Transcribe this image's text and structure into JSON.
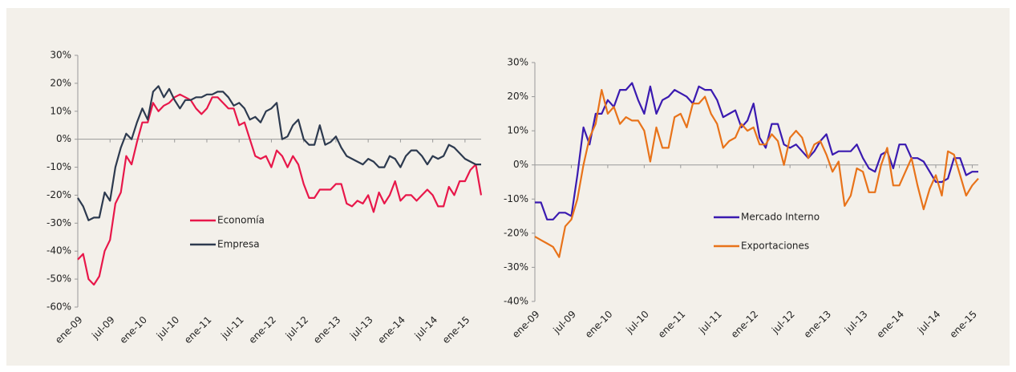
{
  "chart_data": [
    {
      "type": "line",
      "categories": [
        "ene-09",
        null,
        null,
        null,
        null,
        null,
        "jul-09",
        null,
        null,
        null,
        null,
        null,
        "ene-10",
        null,
        null,
        null,
        null,
        null,
        "jul-10",
        null,
        null,
        null,
        null,
        null,
        "ene-11",
        null,
        null,
        null,
        null,
        null,
        "jul-11",
        null,
        null,
        null,
        null,
        null,
        "ene-12",
        null,
        null,
        null,
        null,
        null,
        "jul-12",
        null,
        null,
        null,
        null,
        null,
        "ene-13",
        null,
        null,
        null,
        null,
        null,
        "jul-13",
        null,
        null,
        null,
        null,
        null,
        "ene-14",
        null,
        null,
        null,
        null,
        null,
        "jul-14",
        null,
        null,
        null,
        null,
        null,
        "ene-15",
        null,
        null,
        null
      ],
      "series": [
        {
          "name": "Economía",
          "color": "#e8174a",
          "values": [
            -43,
            -41,
            -50,
            -52,
            -49,
            -40,
            -36,
            -23,
            -19,
            -6,
            -9,
            -1,
            6,
            6,
            13,
            10,
            12,
            13,
            15,
            16,
            15,
            14,
            11,
            9,
            11,
            15,
            15,
            13,
            11,
            11,
            5,
            6,
            0,
            -6,
            -7,
            -6,
            -10,
            -4,
            -6,
            -10,
            -6,
            -9,
            -16,
            -21,
            -21,
            -18,
            -18,
            -18,
            -16,
            -16,
            -23,
            -24,
            -22,
            -23,
            -20,
            -26,
            -19,
            -23,
            -20,
            -15,
            -22,
            -20,
            -20,
            -22,
            -20,
            -18,
            -20,
            -24,
            -24,
            -17,
            -20,
            -15,
            -15,
            -11,
            -9,
            -20
          ]
        },
        {
          "name": "Empresa",
          "color": "#2d3a4f",
          "values": [
            -21,
            -24,
            -29,
            -28,
            -28,
            -19,
            -22,
            -10,
            -3,
            2,
            0,
            6,
            11,
            7,
            17,
            19,
            15,
            18,
            14,
            11,
            14,
            14,
            15,
            15,
            16,
            16,
            17,
            17,
            15,
            12,
            13,
            11,
            7,
            8,
            6,
            10,
            11,
            13,
            0,
            1,
            5,
            7,
            0,
            -2,
            -2,
            5,
            -2,
            -1,
            1,
            -3,
            -6,
            -7,
            -8,
            -9,
            -7,
            -8,
            -10,
            -10,
            -6,
            -7,
            -10,
            -6,
            -4,
            -4,
            -6,
            -9,
            -6,
            -7,
            -6,
            -2,
            -3,
            -5,
            -7,
            -8,
            -9,
            -9
          ]
        }
      ],
      "ylim": [
        -60,
        30
      ],
      "yticks": [
        {
          "value": -60,
          "label": "-60%"
        },
        {
          "value": -50,
          "label": "-50%"
        },
        {
          "value": -40,
          "label": "-40%"
        },
        {
          "value": -30,
          "label": "-30%"
        },
        {
          "value": -20,
          "label": "-20%"
        },
        {
          "value": -10,
          "label": "-10%"
        },
        {
          "value": 0,
          "label": "0%"
        },
        {
          "value": 10,
          "label": "10%"
        },
        {
          "value": 20,
          "label": "20%"
        },
        {
          "value": 30,
          "label": "30%"
        }
      ]
    },
    {
      "type": "line",
      "categories": [
        "ene-09",
        null,
        null,
        null,
        null,
        null,
        "jul-09",
        null,
        null,
        null,
        null,
        null,
        "ene-10",
        null,
        null,
        null,
        null,
        null,
        "jul-10",
        null,
        null,
        null,
        null,
        null,
        "ene-11",
        null,
        null,
        null,
        null,
        null,
        "jul-11",
        null,
        null,
        null,
        null,
        null,
        "ene-12",
        null,
        null,
        null,
        null,
        null,
        "jul-12",
        null,
        null,
        null,
        null,
        null,
        "ene-13",
        null,
        null,
        null,
        null,
        null,
        "jul-13",
        null,
        null,
        null,
        null,
        null,
        "ene-14",
        null,
        null,
        null,
        null,
        null,
        "jul-14",
        null,
        null,
        null,
        null,
        null,
        "ene-15",
        null
      ],
      "series": [
        {
          "name": "Mercado Interno",
          "color": "#3a1ab0",
          "values": [
            -11,
            -11,
            -16,
            -16,
            -14,
            -14,
            -15,
            -3,
            11,
            6,
            15,
            15,
            19,
            17,
            22,
            22,
            24,
            19,
            15,
            23,
            15,
            19,
            20,
            22,
            21,
            20,
            18,
            23,
            22,
            22,
            19,
            14,
            15,
            16,
            11,
            13,
            18,
            8,
            5,
            12,
            12,
            6,
            5,
            6,
            4,
            2,
            4,
            7,
            9,
            3,
            4,
            4,
            4,
            6,
            2,
            -1,
            -2,
            3,
            4,
            -1,
            6,
            6,
            2,
            2,
            1,
            -2,
            -5,
            -5,
            -4,
            2,
            2,
            -3,
            -2,
            -2
          ]
        },
        {
          "name": "Exportaciones",
          "color": "#e8731a",
          "values": [
            -21,
            -22,
            -23,
            -24,
            -27,
            -18,
            -16,
            -10,
            0,
            8,
            12,
            22,
            15,
            17,
            12,
            14,
            13,
            13,
            10,
            1,
            11,
            5,
            5,
            14,
            15,
            11,
            18,
            18,
            20,
            15,
            12,
            5,
            7,
            8,
            12,
            10,
            11,
            6,
            6,
            9,
            7,
            0,
            8,
            10,
            8,
            2,
            6,
            7,
            3,
            -2,
            1,
            -12,
            -9,
            -1,
            -2,
            -8,
            -8,
            0,
            5,
            -6,
            -6,
            -2,
            2,
            -6,
            -13,
            -7,
            -3,
            -9,
            4,
            3,
            -3,
            -9,
            -6,
            -4
          ]
        }
      ],
      "ylim": [
        -40,
        30
      ],
      "yticks": [
        {
          "value": -40,
          "label": "-40%"
        },
        {
          "value": -30,
          "label": "-30%"
        },
        {
          "value": -20,
          "label": "-20%"
        },
        {
          "value": -10,
          "label": "-10%"
        },
        {
          "value": 0,
          "label": "0%"
        },
        {
          "value": 10,
          "label": "10%"
        },
        {
          "value": 20,
          "label": "20%"
        },
        {
          "value": 30,
          "label": "30%"
        }
      ]
    }
  ]
}
